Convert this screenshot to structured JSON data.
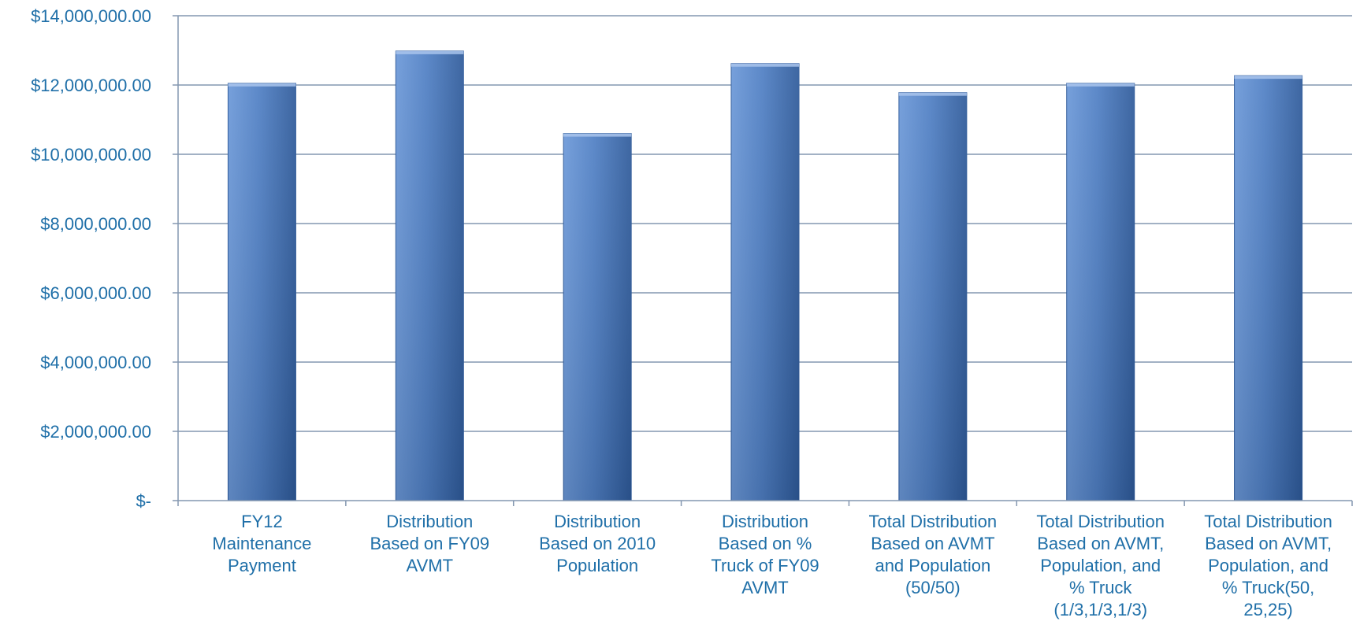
{
  "chart_data": {
    "type": "bar",
    "title": "",
    "xlabel": "",
    "ylabel": "",
    "categories": [
      [
        "FY12",
        "Maintenance",
        "Payment"
      ],
      [
        "Distribution",
        "Based on FY09",
        "AVMT"
      ],
      [
        "Distribution",
        "Based on 2010",
        "Population"
      ],
      [
        "Distribution",
        "Based on %",
        "Truck of FY09",
        "AVMT"
      ],
      [
        "Total Distribution",
        "Based on AVMT",
        "and Population",
        "(50/50)"
      ],
      [
        "Total Distribution",
        "Based on AVMT,",
        "Population, and",
        "% Truck",
        "(1/3,1/3,1/3)"
      ],
      [
        "Total Distribution",
        "Based on AVMT,",
        "Population, and",
        "% Truck(50,",
        "25,25)"
      ]
    ],
    "values": [
      12050000,
      12980000,
      10600000,
      12620000,
      11780000,
      12050000,
      12270000
    ],
    "ylim": [
      0,
      14000000
    ],
    "y_ticks": [
      {
        "value": 0,
        "label": "$-"
      },
      {
        "value": 2000000,
        "label": "$2,000,000.00"
      },
      {
        "value": 4000000,
        "label": "$4,000,000.00"
      },
      {
        "value": 6000000,
        "label": "$6,000,000.00"
      },
      {
        "value": 8000000,
        "label": "$8,000,000.00"
      },
      {
        "value": 10000000,
        "label": "$10,000,000.00"
      },
      {
        "value": 12000000,
        "label": "$12,000,000.00"
      },
      {
        "value": 14000000,
        "label": "$14,000,000.00"
      }
    ],
    "grid": true,
    "legend": "none",
    "colors": {
      "bar_light": "#6b98d8",
      "bar_mid": "#4f7fc4",
      "bar_dark": "#2e5a9a",
      "grid": "#8497b0",
      "text": "#1f6fa8"
    }
  }
}
